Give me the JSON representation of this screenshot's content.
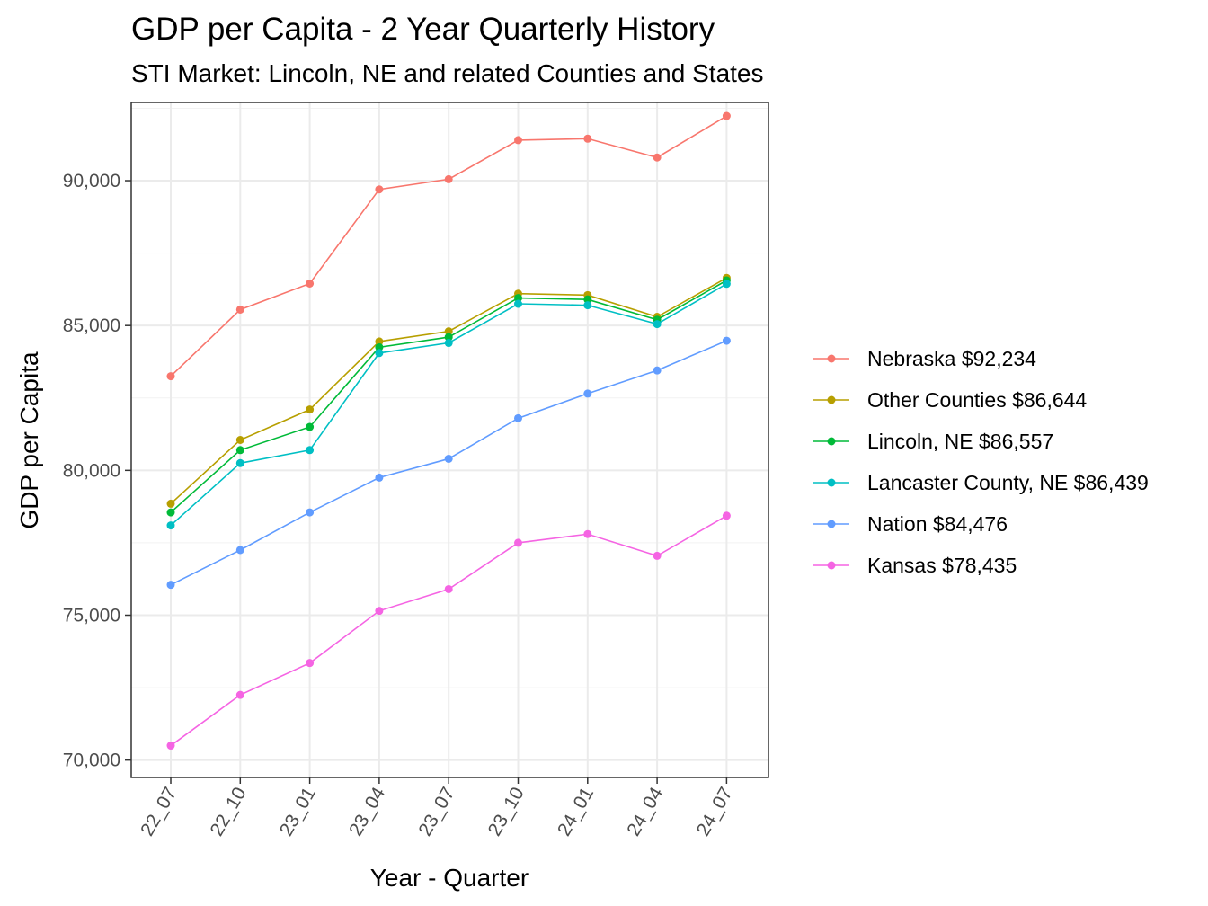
{
  "chart_data": {
    "type": "line",
    "title": "GDP per Capita - 2 Year Quarterly History",
    "subtitle": "STI Market: Lincoln, NE and related Counties and States",
    "xlabel": "Year - Quarter",
    "ylabel": "GDP per Capita",
    "categories": [
      "22_07",
      "22_10",
      "23_01",
      "23_04",
      "23_07",
      "23_10",
      "24_01",
      "24_04",
      "24_07"
    ],
    "ylim": [
      69400,
      92700
    ],
    "y_ticks": [
      70000,
      75000,
      80000,
      85000,
      90000
    ],
    "y_tick_labels": [
      "70,000",
      "75,000",
      "80,000",
      "85,000",
      "90,000"
    ],
    "grid": true,
    "legend_position": "right",
    "series": [
      {
        "name": "Nebraska",
        "legend_label": "Nebraska $92,234",
        "color": "#F8766D",
        "values": [
          83250,
          85550,
          86450,
          89700,
          90050,
          91400,
          91450,
          90800,
          92234
        ]
      },
      {
        "name": "Other Counties",
        "legend_label": "Other Counties $86,644",
        "color": "#B79F00",
        "values": [
          78850,
          81050,
          82100,
          84450,
          84800,
          86100,
          86050,
          85300,
          86644
        ]
      },
      {
        "name": "Lincoln, NE",
        "legend_label": "Lincoln, NE $86,557",
        "color": "#00BA38",
        "values": [
          78550,
          80700,
          81500,
          84250,
          84600,
          85950,
          85900,
          85200,
          86557
        ]
      },
      {
        "name": "Lancaster County, NE",
        "legend_label": "Lancaster County, NE $86,439",
        "color": "#00BFC4",
        "values": [
          78100,
          80250,
          80700,
          84050,
          84400,
          85750,
          85700,
          85050,
          86439
        ]
      },
      {
        "name": "Nation",
        "legend_label": "Nation $84,476",
        "color": "#619CFF",
        "values": [
          76050,
          77250,
          78550,
          79750,
          80400,
          81800,
          82650,
          83450,
          84476
        ]
      },
      {
        "name": "Kansas",
        "legend_label": "Kansas $78,435",
        "color": "#F564E3",
        "values": [
          70500,
          72250,
          73350,
          75150,
          75900,
          77500,
          77800,
          77050,
          78435
        ]
      }
    ]
  }
}
